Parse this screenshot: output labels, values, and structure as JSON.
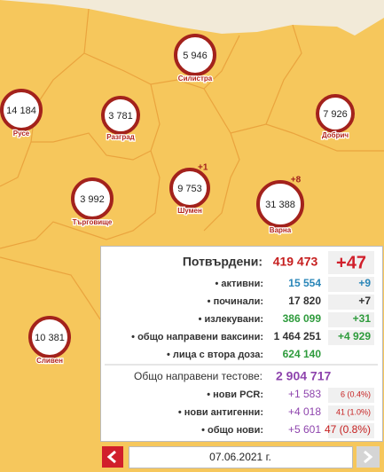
{
  "map": {
    "regions": [
      {
        "name": "Силистра",
        "value": "5 946"
      },
      {
        "name": "Русе",
        "value": "14 184"
      },
      {
        "name": "Разград",
        "value": "3 781"
      },
      {
        "name": "Добрич",
        "value": "7 926"
      },
      {
        "name": "Търговище",
        "value": "3 992"
      },
      {
        "name": "Шумен",
        "value": "9 753",
        "delta": "+1"
      },
      {
        "name": "Варна",
        "value": "31 388",
        "delta": "+8"
      },
      {
        "name": "Сливен",
        "value": "10 381"
      }
    ]
  },
  "panel": {
    "confirmed": {
      "label": "Потвърдени:",
      "value": "419 473",
      "delta": "+47"
    },
    "rows": [
      {
        "label": "• активни:",
        "value": "15 554",
        "delta": "+9"
      },
      {
        "label": "• починали:",
        "value": "17 820",
        "delta": "+7"
      },
      {
        "label": "• излекувани:",
        "value": "386 099",
        "delta": "+31"
      },
      {
        "label": "• общо направени ваксини:",
        "value": "1 464 251",
        "delta": "+4 929"
      },
      {
        "label": "• лица с втора доза:",
        "value": "624 140"
      }
    ],
    "tests": {
      "label": "Общо направени тестове:",
      "value": "2 904 717"
    },
    "test_rows": [
      {
        "label": "• нови PCR:",
        "value": "+1 583",
        "positive": "6 (0.4%)"
      },
      {
        "label": "• нови антигенни:",
        "value": "+4 018",
        "positive": "41 (1.0%)"
      },
      {
        "label": "• общо нови:",
        "value": "+5 601",
        "positive": "47 (0.8%)"
      }
    ]
  },
  "nav": {
    "date": "07.06.2021 г."
  }
}
